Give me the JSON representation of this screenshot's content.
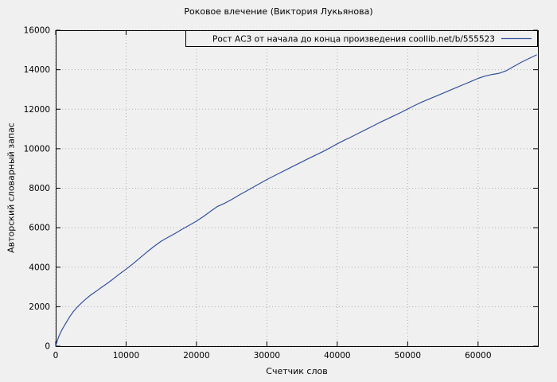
{
  "chart_data": {
    "type": "line",
    "title": "Роковое влечение (Виктория Лукьянова)",
    "xlabel": "Счетчик слов",
    "ylabel": "Авторский словарный запас",
    "xlim": [
      0,
      68500
    ],
    "ylim": [
      0,
      16000
    ],
    "x_ticks": [
      0,
      10000,
      20000,
      30000,
      40000,
      50000,
      60000
    ],
    "y_ticks": [
      0,
      2000,
      4000,
      6000,
      8000,
      10000,
      12000,
      14000,
      16000
    ],
    "grid": true,
    "legend_position": "top",
    "colors": {
      "line": "#33519e",
      "grid": "#b0b0b0",
      "border": "#000000",
      "background": "#f0f0f0"
    },
    "series": [
      {
        "name": "Рост АСЗ от начала до конца произведения coollib.net/b/555523",
        "color": "#33519e",
        "points": [
          [
            0,
            0
          ],
          [
            200,
            250
          ],
          [
            400,
            450
          ],
          [
            700,
            700
          ],
          [
            1000,
            900
          ],
          [
            1500,
            1200
          ],
          [
            2000,
            1500
          ],
          [
            2500,
            1750
          ],
          [
            3000,
            1950
          ],
          [
            3500,
            2130
          ],
          [
            4000,
            2300
          ],
          [
            4500,
            2450
          ],
          [
            5000,
            2600
          ],
          [
            5500,
            2720
          ],
          [
            6000,
            2850
          ],
          [
            6500,
            2980
          ],
          [
            7000,
            3100
          ],
          [
            7500,
            3230
          ],
          [
            8000,
            3360
          ],
          [
            8500,
            3500
          ],
          [
            9000,
            3640
          ],
          [
            9500,
            3770
          ],
          [
            10000,
            3900
          ],
          [
            11000,
            4180
          ],
          [
            12000,
            4480
          ],
          [
            13000,
            4780
          ],
          [
            14000,
            5060
          ],
          [
            15000,
            5320
          ],
          [
            16000,
            5520
          ],
          [
            17000,
            5720
          ],
          [
            18000,
            5930
          ],
          [
            19000,
            6130
          ],
          [
            20000,
            6330
          ],
          [
            21000,
            6570
          ],
          [
            22000,
            6830
          ],
          [
            23000,
            7080
          ],
          [
            24000,
            7240
          ],
          [
            25000,
            7430
          ],
          [
            26000,
            7640
          ],
          [
            27000,
            7840
          ],
          [
            28000,
            8040
          ],
          [
            29000,
            8240
          ],
          [
            30000,
            8440
          ],
          [
            31000,
            8620
          ],
          [
            32000,
            8800
          ],
          [
            33000,
            8980
          ],
          [
            34000,
            9160
          ],
          [
            35000,
            9340
          ],
          [
            36000,
            9520
          ],
          [
            37000,
            9690
          ],
          [
            38000,
            9860
          ],
          [
            39000,
            10050
          ],
          [
            40000,
            10250
          ],
          [
            41000,
            10430
          ],
          [
            42000,
            10600
          ],
          [
            43000,
            10780
          ],
          [
            44000,
            10960
          ],
          [
            45000,
            11140
          ],
          [
            46000,
            11320
          ],
          [
            47000,
            11490
          ],
          [
            48000,
            11660
          ],
          [
            49000,
            11830
          ],
          [
            50000,
            12010
          ],
          [
            51000,
            12190
          ],
          [
            52000,
            12360
          ],
          [
            53000,
            12510
          ],
          [
            54000,
            12660
          ],
          [
            55000,
            12810
          ],
          [
            56000,
            12960
          ],
          [
            57000,
            13110
          ],
          [
            58000,
            13260
          ],
          [
            59000,
            13410
          ],
          [
            60000,
            13560
          ],
          [
            61000,
            13680
          ],
          [
            62000,
            13760
          ],
          [
            63000,
            13820
          ],
          [
            64000,
            13950
          ],
          [
            65000,
            14150
          ],
          [
            66000,
            14350
          ],
          [
            67000,
            14530
          ],
          [
            68300,
            14750
          ]
        ]
      }
    ]
  }
}
